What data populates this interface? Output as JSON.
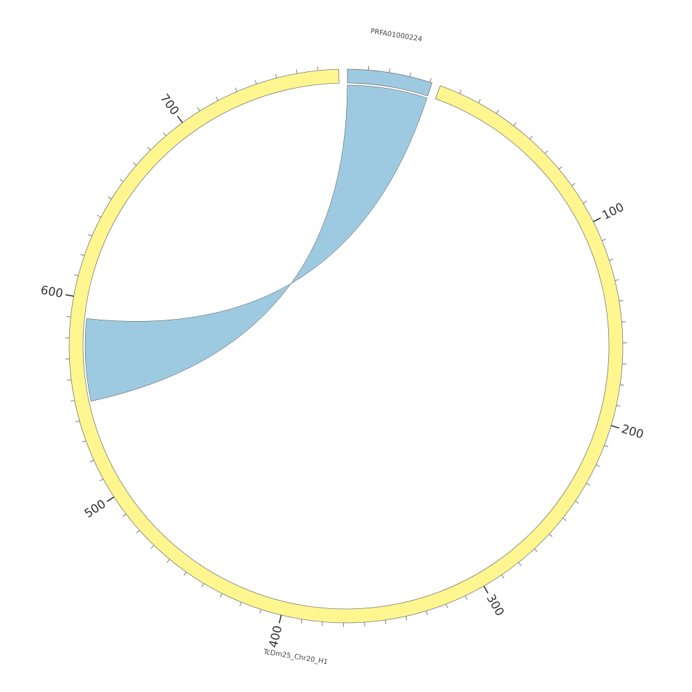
{
  "chart_data": {
    "type": "chord",
    "segments": [
      {
        "name": "PRFA01000224",
        "length": 41,
        "color": "#9ecae1",
        "ticks": [],
        "minor_ticks": [
          10,
          20,
          30,
          40
        ]
      },
      {
        "name": "TcDm25_Chr20_H1",
        "length": 780,
        "color": "#fff68f",
        "ticks": [
          100,
          200,
          300,
          400,
          500,
          600,
          700
        ],
        "minor_ticks": [
          10,
          20,
          30,
          40,
          50,
          60,
          70,
          80,
          90,
          110,
          120,
          130,
          140,
          150,
          160,
          170,
          180,
          190,
          210,
          220,
          230,
          240,
          250,
          260,
          270,
          280,
          290,
          310,
          320,
          330,
          340,
          350,
          360,
          370,
          380,
          390,
          410,
          420,
          430,
          440,
          450,
          460,
          470,
          480,
          490,
          510,
          520,
          530,
          540,
          550,
          560,
          570,
          580,
          590,
          610,
          620,
          630,
          640,
          650,
          660,
          670,
          680,
          690,
          710,
          720,
          730,
          740,
          750,
          760,
          770
        ]
      }
    ],
    "links": [
      {
        "source": "PRFA01000224",
        "source_start": 0,
        "source_end": 41,
        "target": "TcDm25_Chr20_H1",
        "target_start": 548,
        "target_end": 590,
        "color": "#9ecae1"
      }
    ]
  }
}
